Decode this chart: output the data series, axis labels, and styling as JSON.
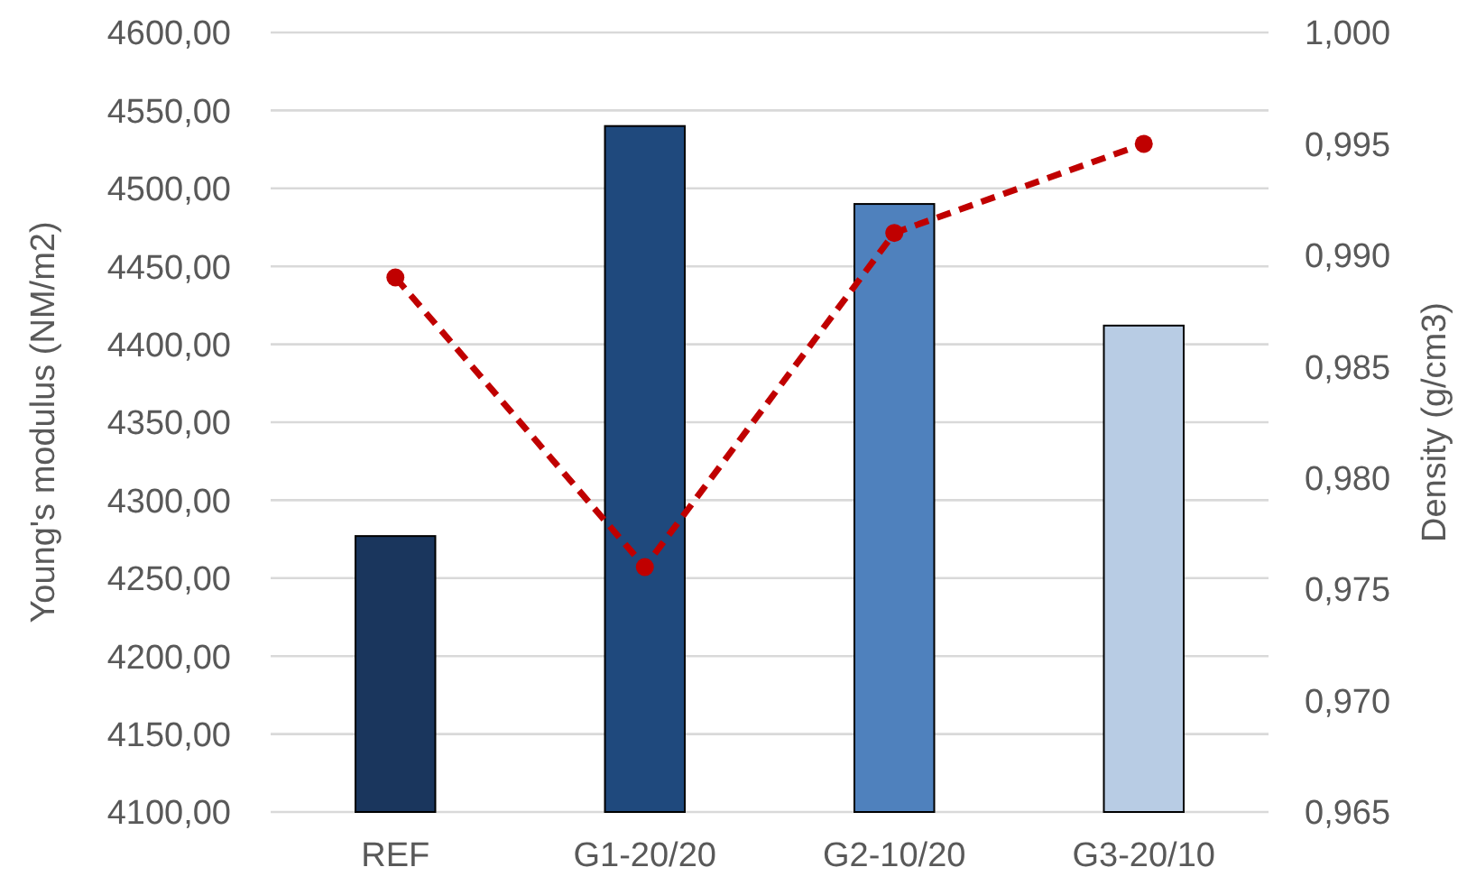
{
  "chart_data": {
    "type": "bar",
    "ylabel": "Young's modulus (NM/m2)",
    "y2label": "Density (g/cm3)",
    "categories": [
      "REF",
      "G1-20/20",
      "G2-10/20",
      "G3-20/10"
    ],
    "series": [
      {
        "values": [
          4277,
          4540,
          4490,
          4412
        ],
        "colors": [
          "#1a365d",
          "#1f497d",
          "#4f81bd",
          "#b8cce4"
        ]
      },
      {
        "type": "line",
        "axis": "y2",
        "color": "#c00000",
        "values": [
          0.989,
          0.976,
          0.991,
          0.995
        ],
        "marker": "circle",
        "line_style": "dashed"
      }
    ],
    "ylim": [
      4100,
      4600
    ],
    "yticks": [
      {
        "value": 4100,
        "label": "4100,00"
      },
      {
        "value": 4150,
        "label": "4150,00"
      },
      {
        "value": 4200,
        "label": "4200,00"
      },
      {
        "value": 4250,
        "label": "4250,00"
      },
      {
        "value": 4300,
        "label": "4300,00"
      },
      {
        "value": 4350,
        "label": "4350,00"
      },
      {
        "value": 4400,
        "label": "4400,00"
      },
      {
        "value": 4450,
        "label": "4450,00"
      },
      {
        "value": 4500,
        "label": "4500,00"
      },
      {
        "value": 4550,
        "label": "4550,00"
      },
      {
        "value": 4600,
        "label": "4600,00"
      }
    ],
    "y2lim": [
      0.965,
      1.0
    ],
    "y2ticks": [
      {
        "value": 0.965,
        "label": "0,965"
      },
      {
        "value": 0.97,
        "label": "0,970"
      },
      {
        "value": 0.975,
        "label": "0,975"
      },
      {
        "value": 0.98,
        "label": "0,980"
      },
      {
        "value": 0.985,
        "label": "0,985"
      },
      {
        "value": 0.99,
        "label": "0,990"
      },
      {
        "value": 0.995,
        "label": "0,995"
      },
      {
        "value": 1.0,
        "label": "1,000"
      }
    ],
    "grid": "y"
  }
}
